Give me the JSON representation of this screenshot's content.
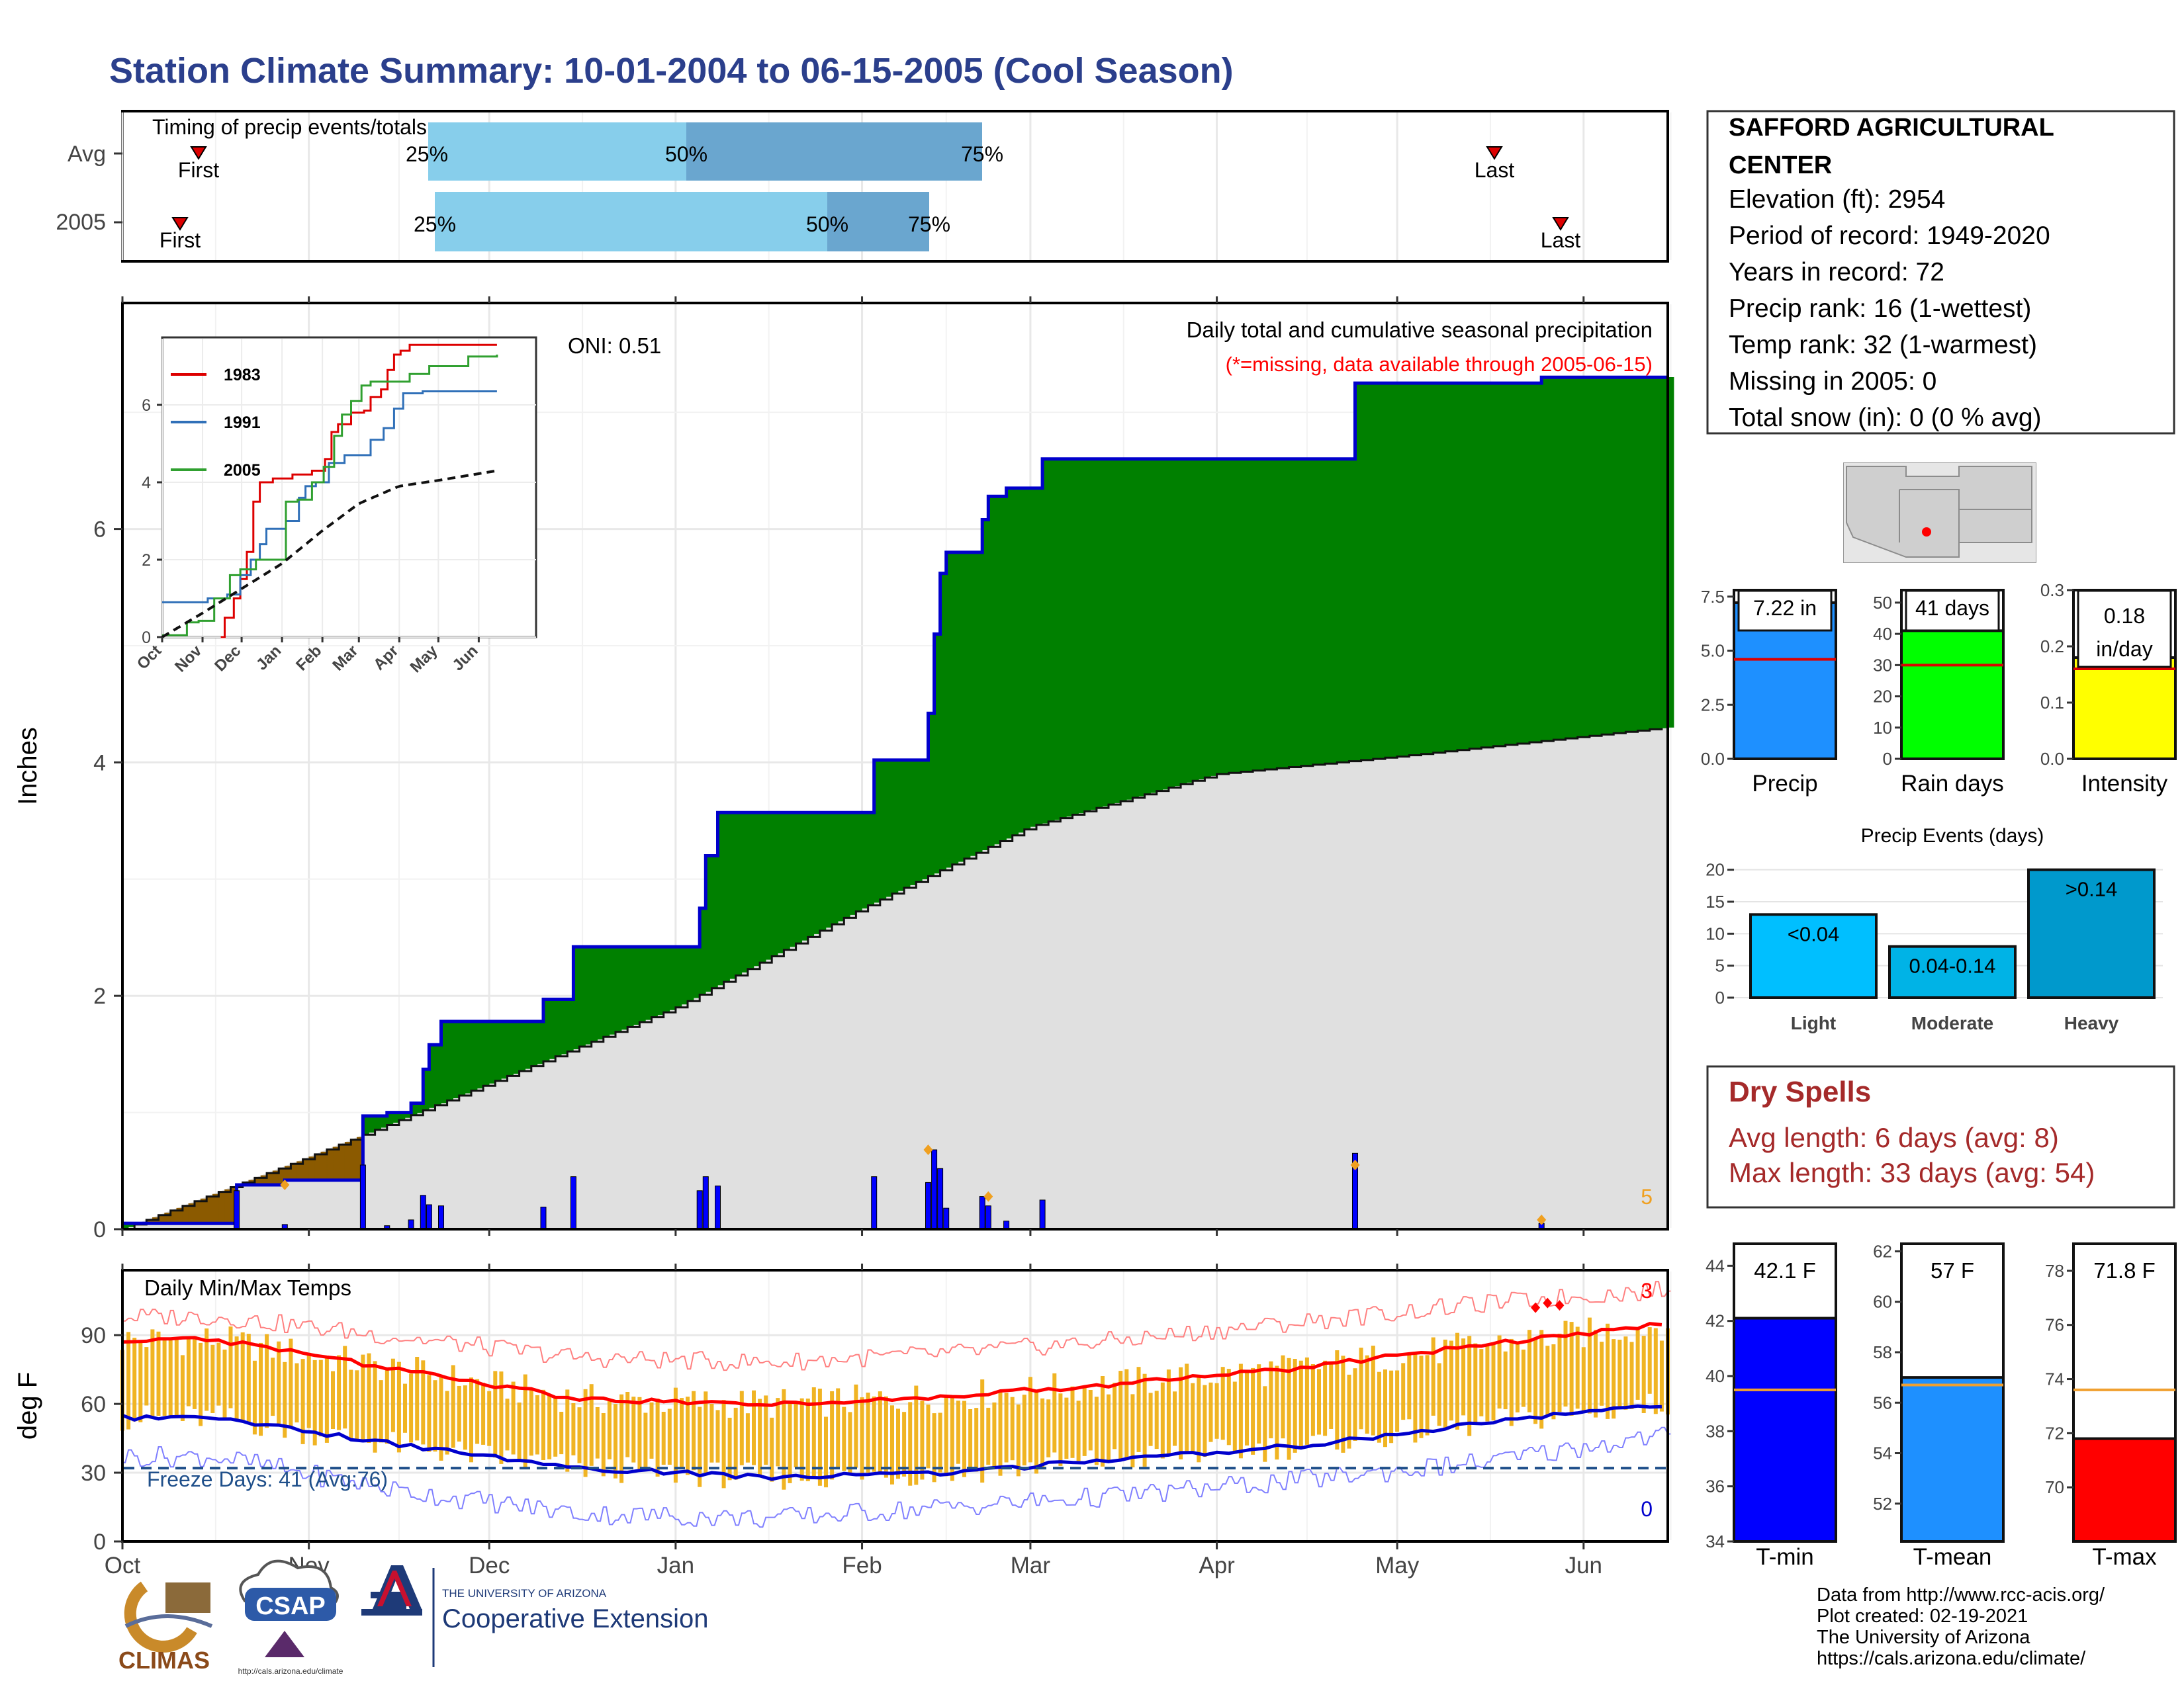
{
  "title": "Station Climate Summary: 10-01-2004 to 06-15-2005 (Cool Season)",
  "colors": {
    "title": "#2b3f8c",
    "precip_fill": "#008000",
    "deficit_fill": "#8b5a00",
    "clim_fill": "#e0e0e0",
    "cum_line": "#0000cc",
    "tmax": "#ff0000",
    "tmin": "#0000cc",
    "bars_temp": "#f0b423",
    "missing_note": "#ff0000",
    "dry_spell": "#a52a2a"
  },
  "timing_panel": {
    "label": "Timing of precip events/totals",
    "rows": [
      {
        "name": "Avg",
        "first_label": "First",
        "last_label": "Last",
        "p25": "25%",
        "p50": "50%",
        "p75": "75%"
      },
      {
        "name": "2005",
        "first_label": "First",
        "last_label": "Last",
        "p25": "25%",
        "p50": "50%",
        "p75": "75%"
      }
    ]
  },
  "station_info": {
    "name_line1": "SAFFORD AGRICULTURAL",
    "name_line2": "CENTER",
    "elevation": "Elevation (ft): 2954",
    "period": "Period of record: 1949-2020",
    "years": "Years in record: 72",
    "precip_rank": "Precip rank: 16 (1-wettest)",
    "temp_rank": "Temp rank: 32 (1-warmest)",
    "missing": "Missing in 2005: 0",
    "snow": "Total snow (in): 0 (0 % avg)"
  },
  "precip_panel": {
    "ylabel": "Inches",
    "oni": "ONI: 0.51",
    "caption": "Daily total and cumulative seasonal precipitation",
    "missing_note": "(*=missing, data available through 2005-06-15)",
    "count_label": "5",
    "yticks": [
      "0",
      "2",
      "4",
      "6"
    ]
  },
  "month_labels": [
    "Oct",
    "Nov",
    "Dec",
    "Jan",
    "Feb",
    "Mar",
    "Apr",
    "May",
    "Jun"
  ],
  "inset": {
    "legend": [
      "1983",
      "1991",
      "2005"
    ],
    "yticks": [
      "0",
      "2",
      "4",
      "6"
    ],
    "xticks": [
      "Oct",
      "Nov",
      "Dec",
      "Jan",
      "Feb",
      "Mar",
      "Apr",
      "May",
      "Jun"
    ]
  },
  "temp_panel": {
    "ylabel": "deg F",
    "title": "Daily Min/Max Temps",
    "freeze": "Freeze Days: 41 (Avg:76)",
    "count_top": "3",
    "count_bottom": "0",
    "yticks": [
      "0",
      "30",
      "60",
      "90"
    ]
  },
  "summary_bars": {
    "precip": {
      "label": "Precip",
      "value_label": "7.22 in",
      "yticks": [
        "0.0",
        "2.5",
        "5.0",
        "7.5"
      ]
    },
    "rain_days": {
      "label": "Rain days",
      "value_label": "41 days",
      "yticks": [
        "0",
        "10",
        "20",
        "30",
        "40",
        "50"
      ]
    },
    "intensity": {
      "label": "Intensity",
      "value_label": "0.18",
      "value_unit": "in/day",
      "yticks": [
        "0.0",
        "0.1",
        "0.2",
        "0.3"
      ]
    }
  },
  "precip_events": {
    "title": "Precip Events (days)",
    "yticks": [
      "0",
      "5",
      "10",
      "15",
      "20"
    ],
    "categories": [
      "Light",
      "Moderate",
      "Heavy"
    ],
    "bar_labels": [
      "<0.04",
      "0.04-0.14",
      ">0.14"
    ]
  },
  "dry_spells": {
    "title": "Dry Spells",
    "avg": "Avg length: 6 days (avg: 8)",
    "max": "Max length: 33 days (avg: 54)"
  },
  "temp_bars": {
    "tmin": {
      "label": "T-min",
      "value_label": "42.1 F",
      "yticks": [
        "34",
        "36",
        "38",
        "40",
        "42",
        "44"
      ]
    },
    "tmean": {
      "label": "T-mean",
      "value_label": "57 F",
      "yticks": [
        "52",
        "54",
        "56",
        "58",
        "60",
        "62"
      ]
    },
    "tmax": {
      "label": "T-max",
      "value_label": "71.8 F",
      "yticks": [
        "70",
        "72",
        "74",
        "76",
        "78"
      ]
    }
  },
  "footer": {
    "line1": "Data from http://www.rcc-acis.org/",
    "line2": "Plot created: 02-19-2021",
    "line3": "The University of Arizona",
    "line4": "https://cals.arizona.edu/climate/",
    "logo1": "CLIMAS",
    "logo2": "CSAP",
    "logo2_url": "http://cals.arizona.edu/climate",
    "logo3_top": "THE UNIVERSITY OF ARIZONA",
    "logo3_main": "Cooperative Extension"
  },
  "chart_data": [
    {
      "type": "area",
      "title": "Daily total and cumulative seasonal precipitation",
      "ylabel": "Inches",
      "ylim": [
        0,
        7.9
      ],
      "x_start": "2004-10-01",
      "x_end": "2005-06-15",
      "series": [
        {
          "name": "2005",
          "x": [
            "2004-10-01",
            "2004-10-20",
            "2004-10-28",
            "2004-11-10",
            "2004-11-14",
            "2004-11-18",
            "2004-11-20",
            "2004-11-21",
            "2004-11-23",
            "2004-12-10",
            "2004-12-15",
            "2005-01-04",
            "2005-01-05",
            "2005-01-06",
            "2005-01-08",
            "2005-01-25",
            "2005-02-03",
            "2005-02-12",
            "2005-02-13",
            "2005-02-14",
            "2005-02-15",
            "2005-02-20",
            "2005-02-21",
            "2005-02-22",
            "2005-02-25",
            "2005-03-03",
            "2005-04-24",
            "2005-05-25",
            "2005-06-15"
          ],
          "values": [
            0.05,
            0.38,
            0.42,
            0.97,
            1.0,
            1.08,
            1.37,
            1.58,
            1.78,
            1.97,
            2.42,
            2.42,
            2.75,
            3.2,
            3.57,
            3.57,
            4.02,
            4.42,
            5.1,
            5.62,
            5.8,
            5.8,
            6.08,
            6.28,
            6.35,
            6.6,
            7.25,
            7.3,
            7.3
          ]
        },
        {
          "name": "Average",
          "x": [
            "2004-10-01",
            "2004-11-01",
            "2004-12-01",
            "2005-01-01",
            "2005-02-01",
            "2005-03-01",
            "2005-04-01",
            "2005-05-01",
            "2005-06-15"
          ],
          "values": [
            0.0,
            0.62,
            1.25,
            1.9,
            2.75,
            3.45,
            3.9,
            4.05,
            4.3
          ]
        }
      ]
    },
    {
      "type": "line",
      "title": "Daily Min/Max Temps",
      "ylabel": "deg F",
      "ylim": [
        0,
        112
      ],
      "categories": [
        "Oct",
        "Nov",
        "Dec",
        "Jan",
        "Feb",
        "Mar",
        "Apr",
        "May",
        "Jun"
      ],
      "series": [
        {
          "name": "avg max",
          "values": [
            88,
            75,
            62,
            60,
            63,
            69,
            76,
            86,
            95
          ]
        },
        {
          "name": "avg min",
          "values": [
            54,
            42,
            32,
            28,
            30,
            36,
            42,
            52,
            60
          ]
        },
        {
          "name": "record max",
          "values": [
            98,
            89,
            80,
            78,
            82,
            88,
            96,
            104,
            110
          ]
        },
        {
          "name": "record min",
          "values": [
            37,
            22,
            12,
            10,
            15,
            20,
            27,
            35,
            47
          ]
        }
      ]
    },
    {
      "type": "bar",
      "title": "Precip Events (days)",
      "categories": [
        "Light",
        "Moderate",
        "Heavy"
      ],
      "values": [
        13,
        8,
        20
      ],
      "ylim": [
        0,
        21
      ]
    },
    {
      "type": "bar",
      "categories": [
        "Precip",
        "Rain days",
        "Intensity"
      ],
      "values": [
        7.22,
        41,
        0.18
      ],
      "averages": [
        4.6,
        30,
        0.16
      ]
    },
    {
      "type": "bar",
      "categories": [
        "T-min",
        "T-mean",
        "T-max"
      ],
      "values": [
        42.1,
        57,
        71.8
      ],
      "averages": [
        39.5,
        56.7,
        73.6
      ]
    }
  ]
}
